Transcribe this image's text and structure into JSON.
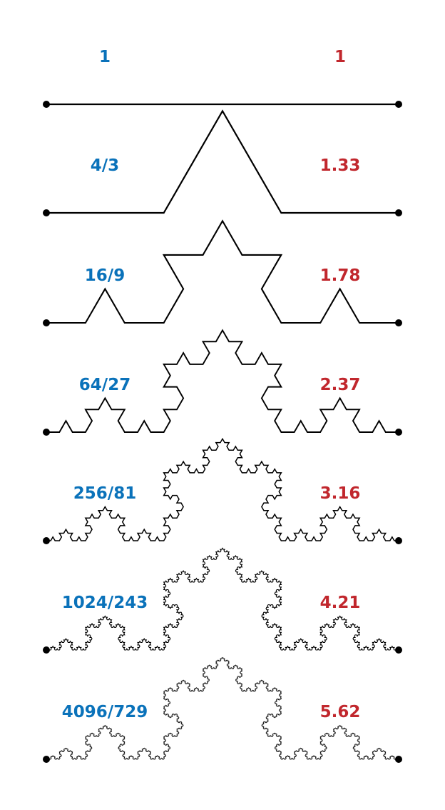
{
  "diagram": {
    "colors": {
      "length_label": "#0a72ba",
      "decimal_label": "#c1272d",
      "curve": "#000000"
    },
    "rows": [
      {
        "iteration": 0,
        "fraction": "1",
        "decimal": "1"
      },
      {
        "iteration": 1,
        "fraction": "4/3",
        "decimal": "1.33"
      },
      {
        "iteration": 2,
        "fraction": "16/9",
        "decimal": "1.78"
      },
      {
        "iteration": 3,
        "fraction": "64/27",
        "decimal": "2.37"
      },
      {
        "iteration": 4,
        "fraction": "256/81",
        "decimal": "3.16"
      },
      {
        "iteration": 5,
        "fraction": "1024/243",
        "decimal": "4.21"
      },
      {
        "iteration": 6,
        "fraction": "4096/729",
        "decimal": "5.62"
      }
    ]
  }
}
